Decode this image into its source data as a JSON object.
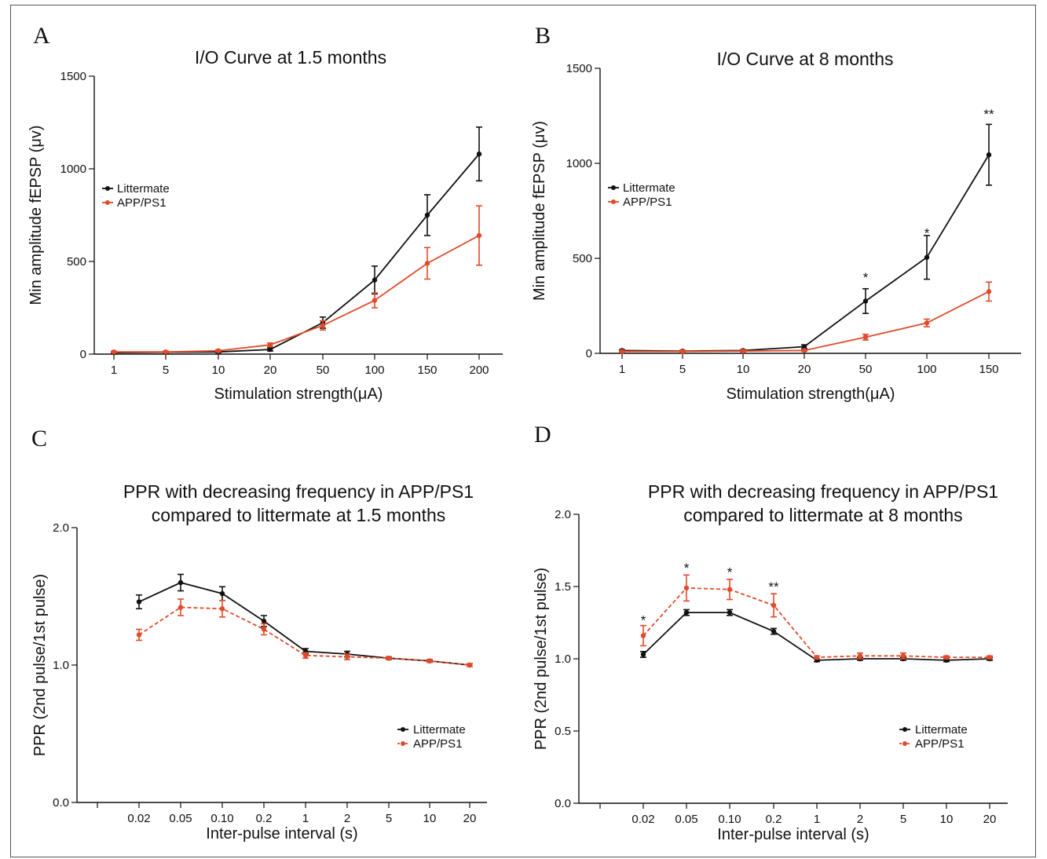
{
  "colors": {
    "littermate": "#111111",
    "app_ps1": "#e04b2a",
    "axis": "#111111"
  },
  "chart_data": [
    {
      "panel": "A",
      "type": "line",
      "title": [
        "I/O Curve at 1.5 months"
      ],
      "xlabel": "Stimulation strength(μA)",
      "ylabel": "Min amplitude fEPSP (μv)",
      "categories": [
        "1",
        "5",
        "10",
        "20",
        "50",
        "100",
        "150",
        "200"
      ],
      "ylim": [
        0,
        1500
      ],
      "yticks": [
        "0",
        "500",
        "1000",
        "1500"
      ],
      "legend": "upper-left",
      "series": [
        {
          "name": "Littermate",
          "style": "solid",
          "values": [
            8,
            10,
            12,
            25,
            170,
            400,
            750,
            1080
          ],
          "errors": [
            4,
            4,
            4,
            8,
            30,
            75,
            110,
            145
          ]
        },
        {
          "name": "APP/PS1",
          "style": "solid",
          "values": [
            12,
            12,
            18,
            50,
            155,
            290,
            490,
            640
          ],
          "errors": [
            4,
            4,
            5,
            10,
            25,
            40,
            85,
            160
          ]
        }
      ],
      "annotations": []
    },
    {
      "panel": "B",
      "type": "line",
      "title": [
        "I/O Curve at 8 months"
      ],
      "xlabel": "Stimulation strength(μA)",
      "ylabel": "Min amplitude fEPSP (μv)",
      "categories": [
        "1",
        "5",
        "10",
        "20",
        "50",
        "100",
        "150"
      ],
      "ylim": [
        0,
        1500
      ],
      "yticks": [
        "0",
        "500",
        "1000",
        "1500"
      ],
      "legend": "upper-left",
      "series": [
        {
          "name": "Littermate",
          "style": "solid",
          "values": [
            15,
            12,
            15,
            35,
            275,
            505,
            1045
          ],
          "errors": [
            4,
            4,
            4,
            10,
            65,
            115,
            160
          ]
        },
        {
          "name": "APP/PS1",
          "style": "solid",
          "values": [
            10,
            10,
            12,
            15,
            85,
            160,
            325
          ],
          "errors": [
            4,
            4,
            4,
            4,
            15,
            20,
            50
          ]
        }
      ],
      "annotations": [
        {
          "category": "50",
          "text": "*",
          "y": 400
        },
        {
          "category": "100",
          "text": "*",
          "y": 635
        },
        {
          "category": "150",
          "text": "**",
          "y": 1260
        }
      ]
    },
    {
      "panel": "C",
      "type": "line",
      "title": [
        "PPR with decreasing frequency in APP/PS1",
        "compared to littermate at 1.5 months"
      ],
      "xlabel": "Inter-pulse interval (s)",
      "ylabel": "PPR (2nd pulse/1st pulse)",
      "categories": [
        "0.02",
        "0.05",
        "0.10",
        "0.2",
        "1",
        "2",
        "5",
        "10",
        "20"
      ],
      "ylim": [
        0,
        2
      ],
      "yticks": [
        "0.0",
        "1.0",
        "2.0"
      ],
      "legend": "lower-right",
      "series": [
        {
          "name": "Littermate",
          "style": "solid",
          "values": [
            1.46,
            1.6,
            1.52,
            1.32,
            1.1,
            1.08,
            1.05,
            1.03,
            1.0
          ],
          "errors": [
            0.05,
            0.06,
            0.05,
            0.04,
            0.02,
            0.02,
            0.01,
            0.01,
            0.01
          ]
        },
        {
          "name": "APP/PS1",
          "style": "dashed",
          "values": [
            1.22,
            1.42,
            1.41,
            1.26,
            1.07,
            1.06,
            1.05,
            1.03,
            1.0
          ],
          "errors": [
            0.04,
            0.06,
            0.06,
            0.04,
            0.02,
            0.02,
            0.01,
            0.01,
            0.01
          ]
        }
      ],
      "annotations": []
    },
    {
      "panel": "D",
      "type": "line",
      "title": [
        "PPR with decreasing frequency in APP/PS1",
        "compared to littermate at 8 months"
      ],
      "xlabel": "Inter-pulse interval (s)",
      "ylabel": "PPR (2nd pulse/1st pulse)",
      "categories": [
        "0.02",
        "0.05",
        "0.10",
        "0.2",
        "1",
        "2",
        "5",
        "10",
        "20"
      ],
      "ylim": [
        0,
        2
      ],
      "yticks": [
        "0.0",
        "0.5",
        "1.0",
        "1.5",
        "2.0"
      ],
      "legend": "lower-right",
      "series": [
        {
          "name": "Littermate",
          "style": "solid",
          "values": [
            1.03,
            1.32,
            1.32,
            1.19,
            0.99,
            1.0,
            1.0,
            0.99,
            1.0
          ],
          "errors": [
            0.02,
            0.02,
            0.02,
            0.02,
            0.01,
            0.01,
            0.01,
            0.01,
            0.01
          ]
        },
        {
          "name": "APP/PS1",
          "style": "dashed",
          "values": [
            1.16,
            1.49,
            1.48,
            1.37,
            1.01,
            1.02,
            1.02,
            1.01,
            1.01
          ],
          "errors": [
            0.07,
            0.09,
            0.07,
            0.08,
            0.01,
            0.02,
            0.02,
            0.01,
            0.01
          ]
        }
      ],
      "annotations": [
        {
          "category": "0.02",
          "text": "*",
          "y": 1.27
        },
        {
          "category": "0.05",
          "text": "*",
          "y": 1.63
        },
        {
          "category": "0.10",
          "text": "*",
          "y": 1.6
        },
        {
          "category": "0.2",
          "text": "**",
          "y": 1.5
        }
      ]
    }
  ]
}
